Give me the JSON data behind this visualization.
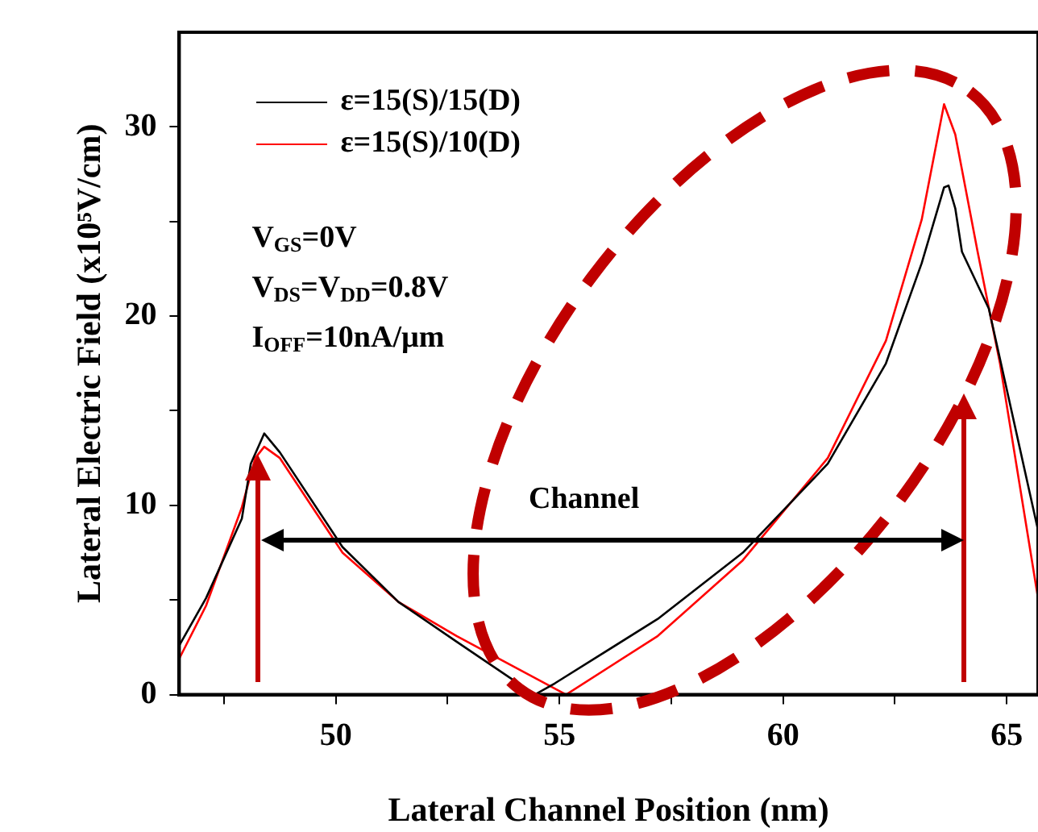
{
  "chart_data": {
    "type": "line",
    "xlabel": "Lateral Channel Position (nm)",
    "ylabel": "Lateral Electric Field (x10⁵V/cm)",
    "xlim": [
      46.5,
      65.7
    ],
    "ylim": [
      0,
      35
    ],
    "xticks": [
      {
        "value": 47.5,
        "label": null
      },
      50,
      {
        "value": 52.5,
        "label": null
      },
      55,
      {
        "value": 57.5,
        "label": null
      },
      60,
      {
        "value": 62.5,
        "label": null
      },
      65
    ],
    "yticks": [
      0,
      {
        "value": 5,
        "label": null
      },
      10,
      {
        "value": 15,
        "label": null
      },
      20,
      {
        "value": 25,
        "label": null
      },
      30
    ],
    "grid": false,
    "legend": "top left",
    "marker": "none",
    "line_style": "solid",
    "annotations": [
      "V$_{GS}$=0V",
      "V$_{DS}$=V$_{DD}$=0.8V",
      "I$_{OFF}$=10nA/µm",
      "Channel"
    ],
    "series": [
      {
        "name": "ε=15(S)/15(D)",
        "color": "#000000",
        "x": [
          46.5,
          47.1,
          47.9,
          48.1,
          48.4,
          48.75,
          50.15,
          51.4,
          52.7,
          54.45,
          54.9,
          57.2,
          59.1,
          61.0,
          62.3,
          63.1,
          63.6,
          63.7,
          63.85,
          64.0,
          64.6,
          65.7
        ],
        "values": [
          2.6,
          5.1,
          9.3,
          12.2,
          13.8,
          12.8,
          7.8,
          4.9,
          2.8,
          0,
          0.6,
          4.0,
          7.5,
          12.2,
          17.5,
          22.8,
          26.8,
          26.9,
          25.7,
          23.4,
          20.4,
          8.7
        ]
      },
      {
        "name": "ε=15(S)/10(D)",
        "color": "#ff0000",
        "x": [
          46.5,
          47.1,
          47.9,
          48.2,
          48.4,
          48.75,
          50.15,
          51.4,
          52.7,
          55.15,
          57.2,
          59.1,
          61.0,
          62.3,
          63.1,
          63.6,
          63.85,
          64.35,
          64.85,
          65.7
        ],
        "values": [
          1.9,
          4.7,
          9.9,
          12.5,
          13.1,
          12.5,
          7.5,
          4.9,
          3.1,
          0,
          3.1,
          7.1,
          12.5,
          18.7,
          25.1,
          31.2,
          29.6,
          23.4,
          17.5,
          5.1
        ]
      }
    ]
  }
}
